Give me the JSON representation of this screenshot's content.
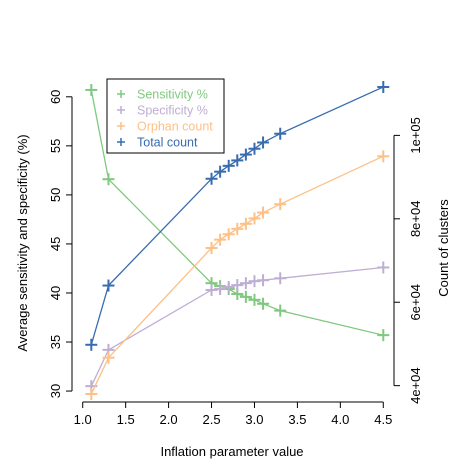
{
  "chart_data": {
    "type": "line",
    "xlabel": "Inflation parameter value",
    "ylabel_left": "Average sensitivity and specificity (%)",
    "ylabel_right": "Count of clusters",
    "x_ticks": [
      "1.0",
      "1.5",
      "2.0",
      "2.5",
      "3.0",
      "3.5",
      "4.0",
      "4.5"
    ],
    "x_tick_values": [
      1.0,
      1.5,
      2.0,
      2.5,
      3.0,
      3.5,
      4.0,
      4.5
    ],
    "y_left_ticks": [
      "30",
      "35",
      "40",
      "45",
      "50",
      "55",
      "60"
    ],
    "y_left_tick_values": [
      30,
      35,
      40,
      45,
      50,
      55,
      60
    ],
    "y_right_ticks": [
      "4e+04",
      "6e+04",
      "8e+04",
      "1e+05"
    ],
    "y_right_tick_values": [
      40000,
      60000,
      80000,
      100000
    ],
    "xlim": [
      0.98,
      4.52
    ],
    "ylim_left": [
      29.7,
      61.0
    ],
    "ylim_right": [
      38000,
      111600
    ],
    "legend_position": "top-left",
    "series": [
      {
        "name": "Sensitivity %",
        "axis": "left",
        "color": "#7fc97f",
        "marker": "+",
        "x": [
          1.1,
          1.3,
          2.5,
          2.6,
          2.7,
          2.8,
          2.9,
          3.0,
          3.1,
          3.3,
          4.5
        ],
        "values": [
          60.7,
          51.6,
          41.0,
          40.7,
          40.4,
          39.9,
          39.6,
          39.3,
          38.9,
          38.2,
          35.7
        ]
      },
      {
        "name": "Specificity %",
        "axis": "left",
        "color": "#beaed4",
        "marker": "+",
        "x": [
          1.1,
          1.3,
          2.5,
          2.6,
          2.7,
          2.8,
          2.9,
          3.0,
          3.1,
          3.3,
          4.5
        ],
        "values": [
          30.5,
          34.2,
          40.3,
          40.4,
          40.6,
          40.8,
          41.0,
          41.2,
          41.3,
          41.5,
          42.6
        ]
      },
      {
        "name": "Orphan count",
        "axis": "right",
        "color": "#fdc086",
        "marker": "+",
        "x": [
          1.1,
          1.3,
          2.5,
          2.6,
          2.7,
          2.8,
          2.9,
          3.0,
          3.1,
          3.3,
          4.5
        ],
        "values": [
          38000,
          46700,
          73000,
          75000,
          76300,
          77600,
          78800,
          80100,
          81500,
          83500,
          95000
        ]
      },
      {
        "name": "Total count",
        "axis": "right",
        "color": "#386cb0",
        "marker": "+",
        "x": [
          1.1,
          1.3,
          2.5,
          2.6,
          2.7,
          2.8,
          2.9,
          3.0,
          3.1,
          3.3,
          4.5
        ],
        "values": [
          49800,
          64000,
          89600,
          91300,
          92700,
          94000,
          95400,
          96800,
          98300,
          100400,
          111600
        ]
      }
    ]
  }
}
